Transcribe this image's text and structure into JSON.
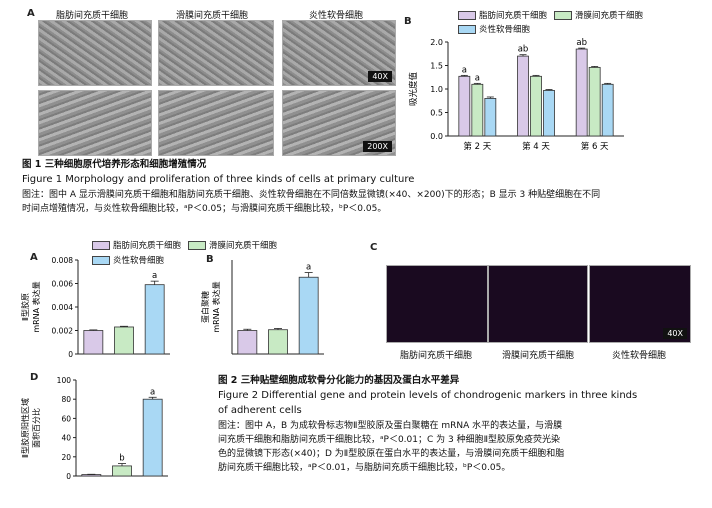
{
  "figure1": {
    "panel_a_letter": "A",
    "panel_b_letter": "B",
    "col_labels": [
      "脂肪间充质干细胞",
      "滑膜间充质干细胞",
      "炎性软骨细胞"
    ],
    "mag_top": "40X",
    "mag_bottom": "200X",
    "caption_title": "图 1    三种细胞原代培养形态和细胞增殖情况",
    "caption_en": "Figure 1    Morphology and proliferation of three kinds of cells at primary culture",
    "caption_note_1": "图注：图中 A 显示滑膜间充质干细胞和脂肪间充质干细胞、炎性软骨细胞在不同倍数显微镜(×40、×200)下的形态；B 显示 3 种贴壁细胞在不同",
    "caption_note_2": "时间点增殖情况，与炎性软骨细胞比较，ᵃP＜0.05；与滑膜间充质干细胞比较，ᵇP＜0.05。"
  },
  "figure2": {
    "panel_a_letter": "A",
    "panel_b_letter": "B",
    "panel_c_letter": "C",
    "panel_d_letter": "D",
    "col_labels": [
      "脂肪间充质干细胞",
      "滑膜间充质干细胞",
      "炎性软骨细胞"
    ],
    "mag": "40X",
    "caption_title": "图 2    三种贴壁细胞成软骨分化能力的基因及蛋白水平差异",
    "caption_en_1": "Figure 2    Differential gene and protein levels of chondrogenic markers in three kinds",
    "caption_en_2": "of adherent cells",
    "caption_note_1": "图注：图中 A，B 为成软骨标志物Ⅱ型胶原及蛋白聚糖在 mRNA 水平的表达量，与滑膜",
    "caption_note_2": "间充质干细胞和脂肪间充质干细胞比较，ᵃP＜0.01；C 为 3 种细胞Ⅱ型胶原免疫荧光染",
    "caption_note_3": "色的显微镜下形态(×40)；D 为Ⅱ型胶原在蛋白水平的表达量，与滑膜间充质干细胞和脂",
    "caption_note_4": "肪间充质干细胞比较，ᵃP＜0.01，与脂肪间充质干细胞比较，ᵇP＜0.05。"
  },
  "colors": {
    "adipose": "#d9c9e8",
    "synovial": "#c8eac4",
    "chondrocyte": "#a9d8f4"
  },
  "chart_data": [
    {
      "id": "fig1-B",
      "type": "bar",
      "categories": [
        "第 2 天",
        "第 4 天",
        "第 6 天"
      ],
      "series": [
        {
          "name": "脂肪间充质干细胞",
          "values": [
            1.27,
            1.7,
            1.85
          ],
          "errors": [
            0.02,
            0.03,
            0.02
          ],
          "labels": [
            "a",
            "ab",
            "ab"
          ]
        },
        {
          "name": "滑膜间充质干细胞",
          "values": [
            1.1,
            1.27,
            1.46
          ],
          "errors": [
            0.02,
            0.02,
            0.02
          ],
          "labels": [
            "a",
            "",
            ""
          ]
        },
        {
          "name": "炎性软骨细胞",
          "values": [
            0.8,
            0.97,
            1.1
          ],
          "errors": [
            0.03,
            0.02,
            0.02
          ],
          "labels": [
            "",
            "",
            ""
          ]
        }
      ],
      "ylabel": "吸光度值",
      "ylim": [
        0,
        2.0
      ],
      "yticks": [
        0.0,
        0.5,
        1.0,
        1.5,
        2.0
      ],
      "ytick_labels": [
        "0.0",
        "0.5",
        "1.0",
        "1.5",
        "2.0"
      ],
      "legend": "top-right"
    },
    {
      "id": "fig2-A",
      "type": "bar",
      "categories": [
        "脂肪间充质干细胞",
        "滑膜间充质干细胞",
        "炎性软骨细胞"
      ],
      "values": [
        0.002,
        0.0023,
        0.0059
      ],
      "errors": [
        5e-05,
        6e-05,
        0.0003
      ],
      "labels": [
        "",
        "",
        "a"
      ],
      "ylabel_line1": "Ⅱ型胶原",
      "ylabel_line2": "mRNA 表达量",
      "ylim": [
        0,
        0.008
      ],
      "yticks": [
        0,
        0.002,
        0.004,
        0.006,
        0.008
      ],
      "ytick_labels": [
        "0",
        "0.002",
        "0.004",
        "0.006",
        "0.008"
      ]
    },
    {
      "id": "fig2-B",
      "type": "bar",
      "categories": [
        "脂肪间充质干细胞",
        "滑膜间充质干细胞",
        "炎性软骨细胞"
      ],
      "values": [
        0.15,
        0.155,
        0.49
      ],
      "errors": [
        0.008,
        0.008,
        0.03
      ],
      "labels": [
        "",
        "",
        "a"
      ],
      "ylabel_line1": "蛋白聚糖",
      "ylabel_line2": "mRNA 表达量",
      "ylim": [
        0,
        0.6
      ],
      "yticks": [],
      "ytick_labels": []
    },
    {
      "id": "fig2-D",
      "type": "bar",
      "categories": [
        "脂肪间充质干细胞",
        "滑膜间充质干细胞",
        "炎性软骨细胞"
      ],
      "values": [
        1.5,
        10.5,
        80
      ],
      "errors": [
        0.3,
        2.5,
        2
      ],
      "labels": [
        "",
        "b",
        "a"
      ],
      "ylabel_line1": "Ⅱ型胶原阳性区域",
      "ylabel_line2": "面积百分比",
      "ylim": [
        0,
        100
      ],
      "yticks": [
        0,
        20,
        40,
        60,
        80,
        100
      ],
      "ytick_labels": [
        "0",
        "20",
        "40",
        "60",
        "80",
        "100"
      ]
    }
  ]
}
